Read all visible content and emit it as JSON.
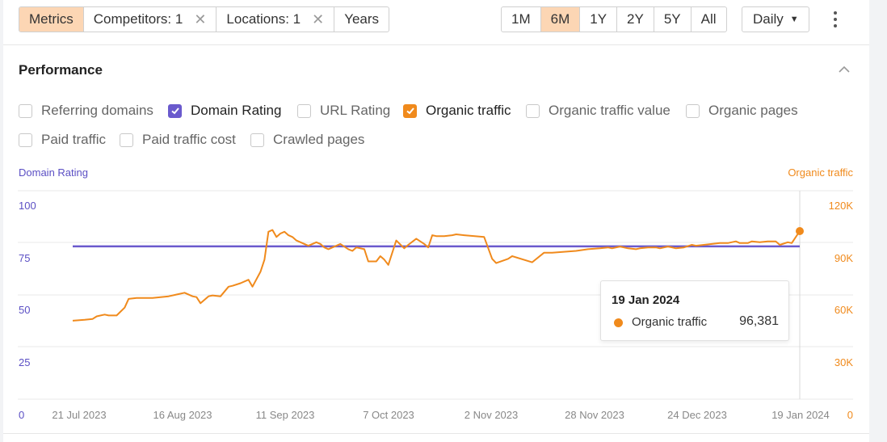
{
  "toolbar": {
    "left_tabs": [
      {
        "label": "Metrics",
        "active": true,
        "closable": false
      },
      {
        "label": "Competitors: 1",
        "active": false,
        "closable": true
      },
      {
        "label": "Locations: 1",
        "active": false,
        "closable": true
      },
      {
        "label": "Years",
        "active": false,
        "closable": false
      }
    ],
    "close_glyph": "✕",
    "ranges": [
      {
        "label": "1M",
        "active": false
      },
      {
        "label": "6M",
        "active": true
      },
      {
        "label": "1Y",
        "active": false
      },
      {
        "label": "2Y",
        "active": false
      },
      {
        "label": "5Y",
        "active": false
      },
      {
        "label": "All",
        "active": false
      }
    ],
    "interval": "Daily"
  },
  "section": {
    "title": "Performance"
  },
  "metrics": [
    {
      "label": "Referring domains",
      "checked": false,
      "color": ""
    },
    {
      "label": "Domain Rating",
      "checked": true,
      "color": "#6a5acd"
    },
    {
      "label": "URL Rating",
      "checked": false,
      "color": ""
    },
    {
      "label": "Organic traffic",
      "checked": true,
      "color": "#f08a1c"
    },
    {
      "label": "Organic traffic value",
      "checked": false,
      "color": ""
    },
    {
      "label": "Organic pages",
      "checked": false,
      "color": ""
    },
    {
      "label": "Paid traffic",
      "checked": false,
      "color": ""
    },
    {
      "label": "Paid traffic cost",
      "checked": false,
      "color": ""
    },
    {
      "label": "Crawled pages",
      "checked": false,
      "color": ""
    }
  ],
  "tooltip": {
    "date": "19 Jan 2024",
    "series": "Organic traffic",
    "value": "96,381"
  },
  "colors": {
    "domain_rating": "#6a5acd",
    "organic_traffic": "#f08a1c",
    "grid": "#e8e8e8"
  },
  "chart_data": {
    "type": "line",
    "left_axis": {
      "label": "Domain Rating",
      "ticks": [
        "0",
        "25",
        "50",
        "75",
        "100"
      ],
      "range": [
        0,
        100
      ]
    },
    "right_axis": {
      "label": "Organic traffic",
      "ticks": [
        "0",
        "30K",
        "60K",
        "90K",
        "120K"
      ],
      "range": [
        0,
        120000
      ]
    },
    "x_ticks": [
      "21 Jul 2023",
      "16 Aug 2023",
      "11 Sep 2023",
      "7 Oct 2023",
      "2 Nov 2023",
      "28 Nov 2023",
      "24 Dec 2023",
      "19 Jan 2024"
    ],
    "grid": true,
    "series": [
      {
        "name": "Domain Rating",
        "axis": "left",
        "color": "#6a5acd",
        "x": [
          "2023-07-21",
          "2024-01-19"
        ],
        "y": [
          73,
          73
        ]
      },
      {
        "name": "Organic traffic",
        "axis": "right",
        "color": "#f08a1c",
        "x": [
          "2023-07-21",
          "2023-07-24",
          "2023-07-26",
          "2023-07-27",
          "2023-07-29",
          "2023-07-30",
          "2023-08-01",
          "2023-08-03",
          "2023-08-04",
          "2023-08-06",
          "2023-08-08",
          "2023-08-10",
          "2023-08-12",
          "2023-08-14",
          "2023-08-16",
          "2023-08-18",
          "2023-08-20",
          "2023-08-21",
          "2023-08-22",
          "2023-08-24",
          "2023-08-25",
          "2023-08-27",
          "2023-08-29",
          "2023-08-30",
          "2023-09-01",
          "2023-09-03",
          "2023-09-04",
          "2023-09-06",
          "2023-09-07",
          "2023-09-08",
          "2023-09-09",
          "2023-09-10",
          "2023-09-11",
          "2023-09-12",
          "2023-09-13",
          "2023-09-14",
          "2023-09-15",
          "2023-09-17",
          "2023-09-18",
          "2023-09-20",
          "2023-09-21",
          "2023-09-22",
          "2023-09-23",
          "2023-09-25",
          "2023-09-26",
          "2023-09-28",
          "2023-09-29",
          "2023-09-30",
          "2023-10-02",
          "2023-10-03",
          "2023-10-05",
          "2023-10-06",
          "2023-10-07",
          "2023-10-08",
          "2023-10-10",
          "2023-10-12",
          "2023-10-13",
          "2023-10-15",
          "2023-10-17",
          "2023-10-18",
          "2023-10-19",
          "2023-10-20",
          "2023-10-22",
          "2023-10-24",
          "2023-10-25",
          "2023-10-27",
          "2023-11-01",
          "2023-11-03",
          "2023-11-04",
          "2023-11-07",
          "2023-11-08",
          "2023-11-13",
          "2023-11-16",
          "2023-11-18",
          "2023-11-21",
          "2023-11-24",
          "2023-11-27",
          "2023-11-30",
          "2023-12-02",
          "2023-12-03",
          "2023-12-05",
          "2023-12-07",
          "2023-12-09",
          "2023-12-10",
          "2023-12-12",
          "2023-12-14",
          "2023-12-15",
          "2023-12-17",
          "2023-12-18",
          "2023-12-19",
          "2023-12-21",
          "2023-12-23",
          "2023-12-24",
          "2023-12-26",
          "2023-12-28",
          "2023-12-30",
          "2024-01-01",
          "2024-01-03",
          "2024-01-04",
          "2024-01-06",
          "2024-01-07",
          "2024-01-09",
          "2024-01-11",
          "2024-01-13",
          "2024-01-14",
          "2024-01-16",
          "2024-01-17",
          "2024-01-19"
        ],
        "y": [
          45000,
          45500,
          46000,
          47500,
          48500,
          48000,
          48000,
          52500,
          57500,
          58000,
          58000,
          58000,
          58500,
          59000,
          60000,
          61000,
          59000,
          58500,
          55000,
          59000,
          59500,
          59000,
          64500,
          65000,
          66500,
          68500,
          64500,
          73000,
          80000,
          96000,
          97000,
          93000,
          95000,
          96000,
          94000,
          93000,
          91000,
          89000,
          88000,
          90000,
          89000,
          87000,
          86000,
          88000,
          89000,
          86000,
          85000,
          87000,
          86000,
          79000,
          79000,
          82000,
          80000,
          77000,
          91000,
          86500,
          88500,
          92000,
          89000,
          87000,
          94000,
          93500,
          93500,
          94000,
          94500,
          94000,
          93000,
          80500,
          78000,
          80500,
          82000,
          78500,
          84000,
          84000,
          84500,
          85000,
          86000,
          86500,
          87000,
          86500,
          87500,
          86500,
          86000,
          86500,
          87000,
          87000,
          86500,
          87500,
          87000,
          86500,
          87000,
          88500,
          88000,
          88500,
          89000,
          89500,
          89500,
          90500,
          89500,
          89500,
          90500,
          90000,
          90500,
          90500,
          88500,
          90000,
          89500,
          96381
        ]
      }
    ]
  }
}
